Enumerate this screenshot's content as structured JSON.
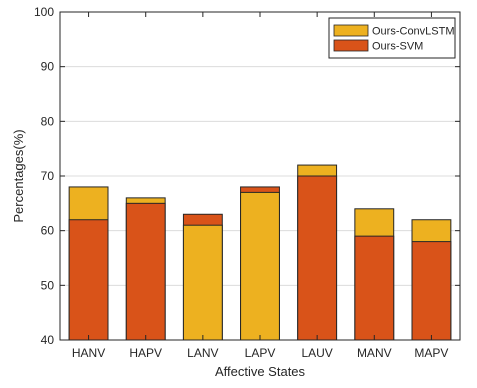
{
  "chart_data": {
    "type": "bar",
    "title": "",
    "xlabel": "Affective States",
    "ylabel": "Percentages(%)",
    "ylim": [
      40,
      100
    ],
    "yticks": [
      40,
      50,
      60,
      70,
      80,
      90,
      100
    ],
    "grid": true,
    "legend_position": "top-right",
    "categories": [
      "HANV",
      "HAPV",
      "LANV",
      "LAPV",
      "LAUV",
      "MANV",
      "MAPV"
    ],
    "series": [
      {
        "name": "Ours-ConvLSTM",
        "color": "#EDB120",
        "values": [
          68,
          66,
          61,
          67,
          72,
          64,
          62
        ]
      },
      {
        "name": "Ours-SVM",
        "color": "#D95319",
        "values": [
          62,
          65,
          63,
          68,
          70,
          59,
          58
        ]
      }
    ]
  }
}
